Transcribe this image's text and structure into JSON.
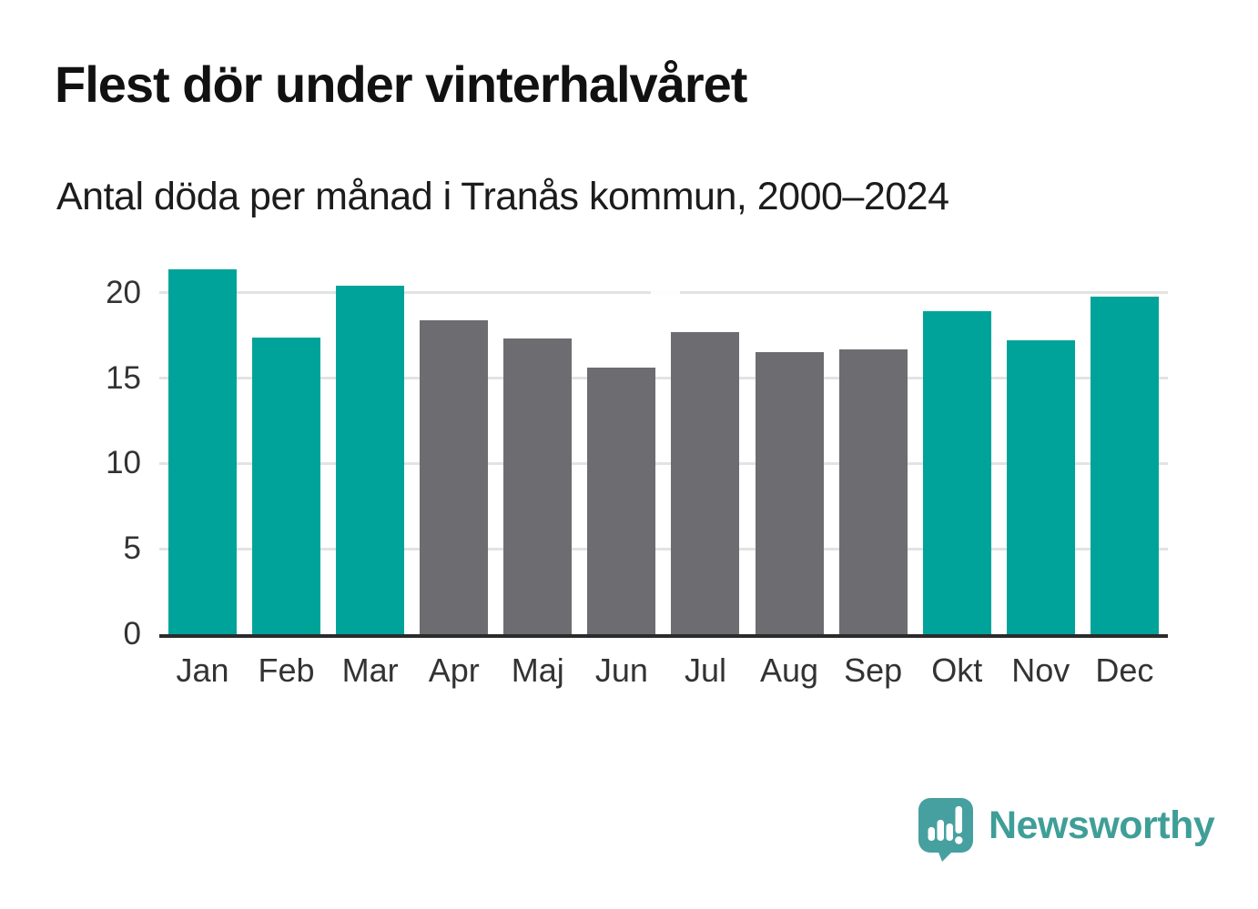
{
  "header": {
    "title": "Flest dör under vinterhalvåret",
    "subtitle": "Antal döda per månad i Tranås kommun, 2000–2024"
  },
  "chart_data": {
    "type": "bar",
    "title": "Flest dör under vinterhalvåret",
    "subtitle": "Antal döda per månad i Tranås kommun, 2000–2024",
    "categories": [
      "Jan",
      "Feb",
      "Mar",
      "Apr",
      "Maj",
      "Jun",
      "Jul",
      "Aug",
      "Sep",
      "Okt",
      "Nov",
      "Dec"
    ],
    "values": [
      21.4,
      17.4,
      20.4,
      18.4,
      17.3,
      15.6,
      17.7,
      16.5,
      16.7,
      18.9,
      17.2,
      19.8
    ],
    "bar_groups": [
      "winter",
      "winter",
      "winter",
      "summer",
      "summer",
      "summer",
      "summer",
      "summer",
      "summer",
      "winter",
      "winter",
      "winter"
    ],
    "group_colors": {
      "winter": "#00a39a",
      "summer": "#6c6c71"
    },
    "xlabel": "",
    "ylabel": "",
    "yticks": [
      0,
      5,
      10,
      15,
      20
    ],
    "ylim": [
      0,
      21.8
    ],
    "grid": "horizontal-only",
    "gridline_color": "#e3e3e3",
    "baseline_color": "#2b2b2b",
    "legend": "none"
  },
  "footer": {
    "brand": "Newsworthy",
    "brand_color": "#3f9e98",
    "icon_color": "#47a0a0",
    "logo_icon": "newsworthy-speech-bubble-bar-chart-icon"
  }
}
